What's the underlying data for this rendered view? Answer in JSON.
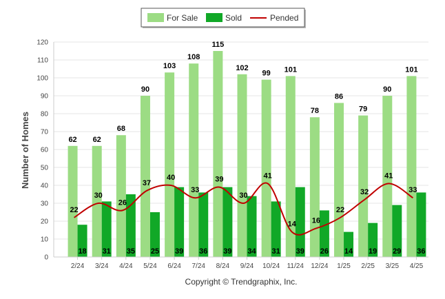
{
  "chart_data": {
    "type": "bar",
    "ylabel": "Number of Homes",
    "ylim": [
      0,
      120
    ],
    "ytick_step": 10,
    "categories": [
      "2/24",
      "3/24",
      "4/24",
      "5/24",
      "6/24",
      "7/24",
      "8/24",
      "9/24",
      "10/24",
      "11/24",
      "12/24",
      "1/25",
      "2/25",
      "3/25",
      "4/25"
    ],
    "series": [
      {
        "name": "For Sale",
        "kind": "bar",
        "color": "#9cdc84",
        "values": [
          62,
          62,
          68,
          90,
          103,
          108,
          115,
          102,
          99,
          101,
          78,
          86,
          79,
          90,
          101
        ]
      },
      {
        "name": "Sold",
        "kind": "bar",
        "color": "#11a827",
        "values": [
          18,
          31,
          35,
          25,
          39,
          36,
          39,
          34,
          31,
          39,
          26,
          14,
          19,
          29,
          36
        ]
      },
      {
        "name": "Pended",
        "kind": "line",
        "color": "#c00000",
        "values": [
          22,
          30,
          26,
          37,
          40,
          33,
          39,
          30,
          41,
          14,
          16,
          22,
          32,
          41,
          33
        ]
      }
    ],
    "legend_position": "top-center",
    "grid": true
  },
  "footer": {
    "copyright": "Copyright © Trendgraphix, Inc."
  }
}
